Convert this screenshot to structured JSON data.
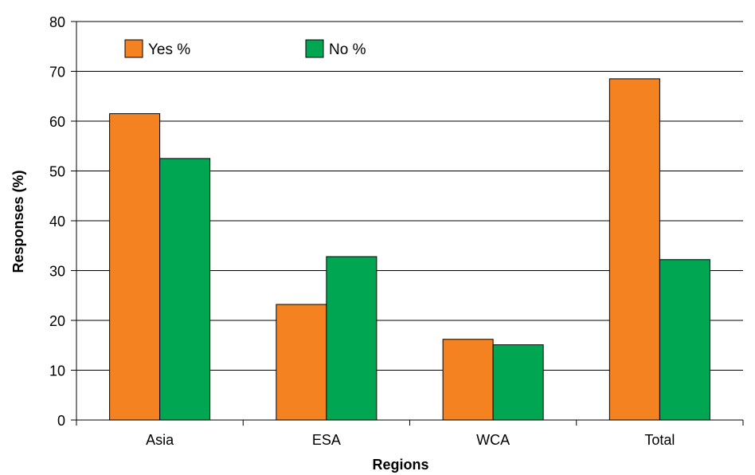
{
  "chart_data": {
    "type": "bar",
    "title": "",
    "xlabel": "Regions",
    "ylabel": "Responses (%)",
    "ylim": [
      0,
      80
    ],
    "yticks": [
      0,
      10,
      20,
      30,
      40,
      50,
      60,
      70,
      80
    ],
    "grid": true,
    "legend_position": "top-left",
    "categories": [
      "Asia",
      "ESA",
      "WCA",
      "Total"
    ],
    "series": [
      {
        "name": "Yes %",
        "color": "#F58220",
        "values": [
          61.5,
          23.2,
          16.2,
          68.5
        ]
      },
      {
        "name": "No %",
        "color": "#00A651",
        "values": [
          52.5,
          32.8,
          15.1,
          32.2
        ]
      }
    ]
  }
}
